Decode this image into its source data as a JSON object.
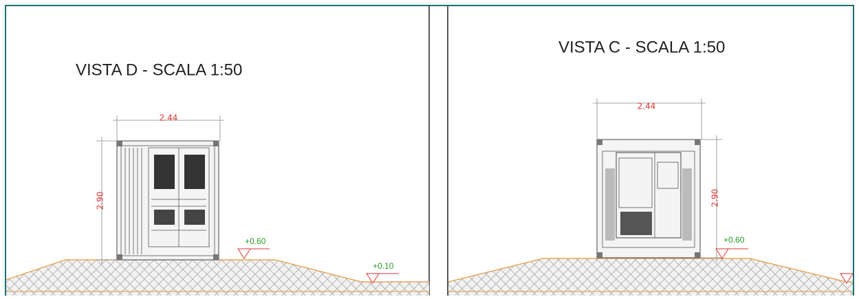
{
  "views": [
    {
      "title": "VISTA D - SCALA 1:50",
      "width": "2.44",
      "height": "2.90",
      "levels": [
        "+0.60",
        "+0.10"
      ]
    },
    {
      "title": "VISTA C - SCALA 1:50",
      "width": "2.44",
      "height": "2.90",
      "levels": [
        "+0.60"
      ]
    }
  ]
}
